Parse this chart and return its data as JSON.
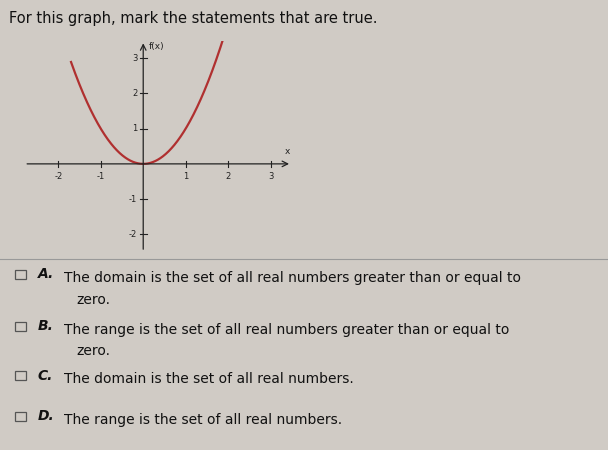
{
  "title": "For this graph, mark the statements that are true.",
  "title_fontsize": 10.5,
  "background_color": "#d0cbc5",
  "curve_color": "#b03030",
  "curve_linewidth": 1.6,
  "axis_color": "#222222",
  "tick_color": "#222222",
  "xlim": [
    -2.8,
    3.5
  ],
  "ylim": [
    -2.5,
    3.5
  ],
  "xticks": [
    -2,
    -1,
    1,
    2,
    3
  ],
  "yticks": [
    -2,
    -1,
    1,
    2,
    3
  ],
  "xlabel": "x",
  "ylabel": "f(x)",
  "x_curve_start": -1.7,
  "x_curve_end": 2.5,
  "choices": [
    {
      "label": "A.",
      "line1": "The domain is the set of all real numbers greater than or equal to",
      "line2": "zero."
    },
    {
      "label": "B.",
      "line1": "The range is the set of all real numbers greater than or equal to",
      "line2": "zero."
    },
    {
      "label": "C.",
      "line1": "The domain is the set of all real numbers.",
      "line2": ""
    },
    {
      "label": "D.",
      "line1": "The range is the set of all real numbers.",
      "line2": ""
    }
  ],
  "text_color": "#111111",
  "font_size": 10.0,
  "label_font_size": 10.0,
  "separator_color": "#999999",
  "checkbox_edge_color": "#555555"
}
